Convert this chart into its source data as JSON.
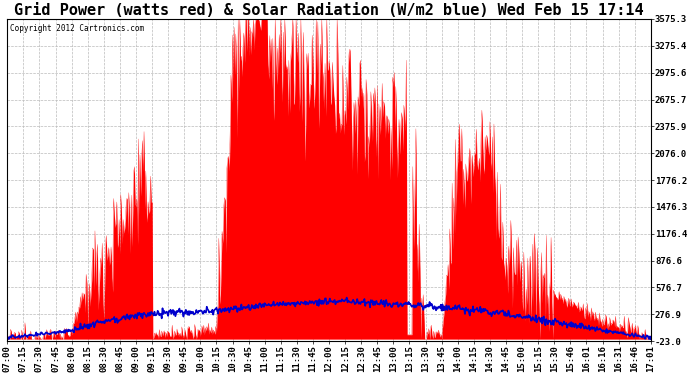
{
  "title": "Grid Power (watts red) & Solar Radiation (W/m2 blue) Wed Feb 15 17:14",
  "copyright": "Copyright 2012 Cartronics.com",
  "yticks": [
    3575.3,
    3275.4,
    2975.6,
    2675.7,
    2375.9,
    2076.0,
    1776.2,
    1476.3,
    1176.4,
    876.6,
    576.7,
    276.9,
    -23.0
  ],
  "ymin": -23.0,
  "ymax": 3575.3,
  "xtick_labels": [
    "07:00",
    "07:15",
    "07:30",
    "07:45",
    "08:00",
    "08:15",
    "08:30",
    "08:45",
    "09:00",
    "09:15",
    "09:30",
    "09:45",
    "10:00",
    "10:15",
    "10:30",
    "10:45",
    "11:00",
    "11:15",
    "11:30",
    "11:45",
    "12:00",
    "12:15",
    "12:30",
    "12:45",
    "13:00",
    "13:15",
    "13:30",
    "13:45",
    "14:00",
    "14:15",
    "14:30",
    "14:45",
    "15:00",
    "15:15",
    "15:30",
    "15:46",
    "16:01",
    "16:16",
    "16:31",
    "16:46",
    "17:01"
  ],
  "bg_color": "#ffffff",
  "grid_color": "#bbbbbb",
  "red_color": "#ff0000",
  "blue_color": "#0000cc",
  "title_fontsize": 11,
  "tick_fontsize": 6.5,
  "grid_power": [
    10,
    20,
    30,
    50,
    80,
    600,
    900,
    1200,
    1600,
    1700,
    50,
    80,
    100,
    120,
    2800,
    3200,
    3400,
    3100,
    3000,
    2900,
    2800,
    2700,
    2600,
    2500,
    2400,
    2300,
    50,
    60,
    1800,
    2000,
    2200,
    800,
    700,
    600,
    500,
    400,
    300,
    200,
    150,
    80,
    10
  ],
  "solar_rad": [
    20,
    30,
    50,
    80,
    100,
    150,
    200,
    230,
    260,
    280,
    290,
    300,
    310,
    320,
    340,
    360,
    380,
    390,
    400,
    410,
    420,
    420,
    410,
    400,
    390,
    380,
    370,
    360,
    340,
    320,
    300,
    280,
    250,
    220,
    190,
    160,
    130,
    100,
    70,
    40,
    10
  ]
}
